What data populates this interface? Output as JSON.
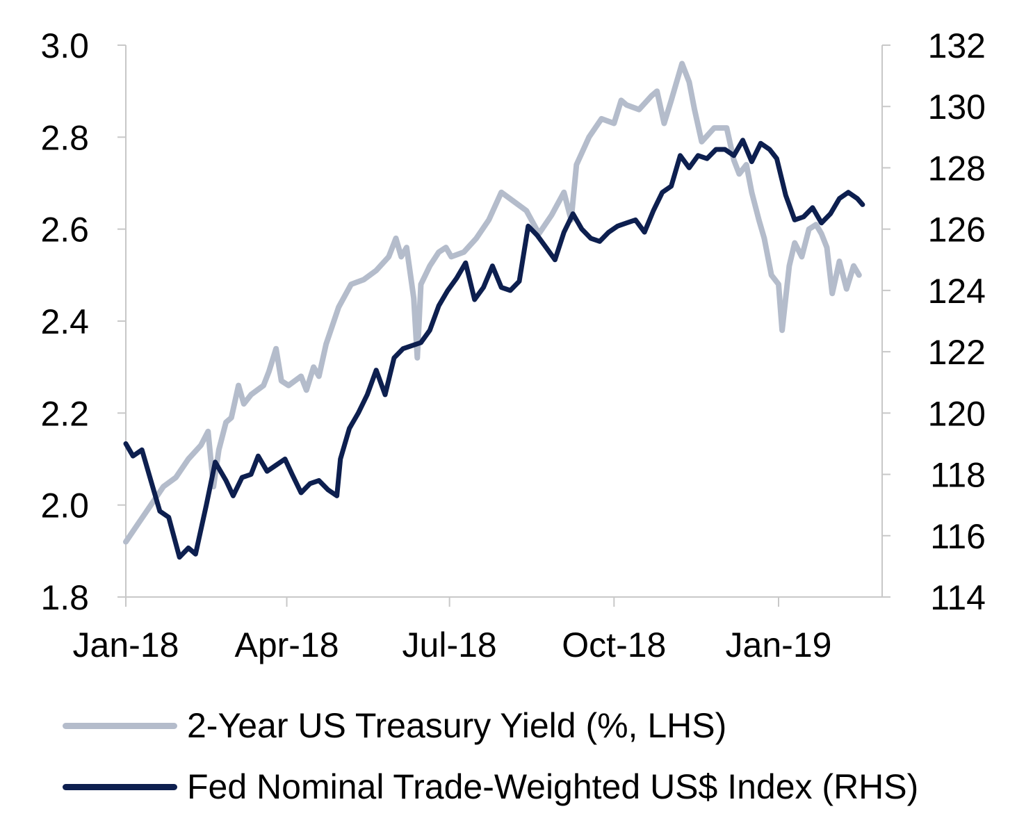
{
  "chart_data": {
    "type": "line",
    "title": "",
    "xlabel": "",
    "ylabel_left": "",
    "ylabel_right": "",
    "x_tick_labels": [
      {
        "date": "2018-01-01",
        "label": "Jan-18"
      },
      {
        "date": "2018-04-01",
        "label": "Apr-18"
      },
      {
        "date": "2018-07-01",
        "label": "Jul-18"
      },
      {
        "date": "2018-10-01",
        "label": "Oct-18"
      },
      {
        "date": "2019-01-01",
        "label": "Jan-19"
      }
    ],
    "x_range": [
      "2018-01-01",
      "2019-02-15"
    ],
    "y_left": {
      "ticks": [
        "1.8",
        "2.0",
        "2.2",
        "2.4",
        "2.6",
        "2.8",
        "3.0"
      ],
      "range": [
        1.8,
        3.0
      ]
    },
    "y_right": {
      "ticks": [
        "114",
        "116",
        "118",
        "120",
        "122",
        "124",
        "126",
        "128",
        "130",
        "132"
      ],
      "range": [
        114,
        132
      ]
    },
    "grid": false,
    "legend_position": "bottom",
    "colors": {
      "yield": "#b4bccb",
      "index": "#0d1f4f",
      "axis": "#c8c8c8"
    },
    "series": [
      {
        "name": "2-Year US Treasury Yield (%, LHS)",
        "axis": "left",
        "points": [
          [
            "2018-01-01",
            1.92
          ],
          [
            "2018-01-08",
            1.96
          ],
          [
            "2018-01-15",
            2.0
          ],
          [
            "2018-01-22",
            2.04
          ],
          [
            "2018-01-29",
            2.06
          ],
          [
            "2018-02-05",
            2.1
          ],
          [
            "2018-02-12",
            2.13
          ],
          [
            "2018-02-16",
            2.16
          ],
          [
            "2018-02-19",
            2.04
          ],
          [
            "2018-02-22",
            2.12
          ],
          [
            "2018-02-26",
            2.18
          ],
          [
            "2018-03-01",
            2.19
          ],
          [
            "2018-03-05",
            2.26
          ],
          [
            "2018-03-08",
            2.22
          ],
          [
            "2018-03-12",
            2.24
          ],
          [
            "2018-03-19",
            2.26
          ],
          [
            "2018-03-22",
            2.29
          ],
          [
            "2018-03-26",
            2.34
          ],
          [
            "2018-03-29",
            2.27
          ],
          [
            "2018-04-02",
            2.26
          ],
          [
            "2018-04-09",
            2.28
          ],
          [
            "2018-04-12",
            2.25
          ],
          [
            "2018-04-16",
            2.3
          ],
          [
            "2018-04-19",
            2.28
          ],
          [
            "2018-04-23",
            2.35
          ],
          [
            "2018-04-30",
            2.43
          ],
          [
            "2018-05-07",
            2.48
          ],
          [
            "2018-05-14",
            2.49
          ],
          [
            "2018-05-21",
            2.51
          ],
          [
            "2018-05-28",
            2.54
          ],
          [
            "2018-06-01",
            2.58
          ],
          [
            "2018-06-04",
            2.54
          ],
          [
            "2018-06-07",
            2.56
          ],
          [
            "2018-06-11",
            2.45
          ],
          [
            "2018-06-13",
            2.32
          ],
          [
            "2018-06-15",
            2.48
          ],
          [
            "2018-06-20",
            2.52
          ],
          [
            "2018-06-25",
            2.55
          ],
          [
            "2018-06-29",
            2.56
          ],
          [
            "2018-07-02",
            2.54
          ],
          [
            "2018-07-09",
            2.55
          ],
          [
            "2018-07-16",
            2.58
          ],
          [
            "2018-07-23",
            2.62
          ],
          [
            "2018-07-30",
            2.68
          ],
          [
            "2018-08-06",
            2.66
          ],
          [
            "2018-08-13",
            2.64
          ],
          [
            "2018-08-20",
            2.59
          ],
          [
            "2018-08-27",
            2.63
          ],
          [
            "2018-09-03",
            2.68
          ],
          [
            "2018-09-07",
            2.62
          ],
          [
            "2018-09-10",
            2.74
          ],
          [
            "2018-09-17",
            2.8
          ],
          [
            "2018-09-24",
            2.84
          ],
          [
            "2018-10-01",
            2.83
          ],
          [
            "2018-10-05",
            2.88
          ],
          [
            "2018-10-08",
            2.87
          ],
          [
            "2018-10-15",
            2.86
          ],
          [
            "2018-10-22",
            2.89
          ],
          [
            "2018-10-25",
            2.9
          ],
          [
            "2018-10-29",
            2.83
          ],
          [
            "2018-11-02",
            2.88
          ],
          [
            "2018-11-08",
            2.96
          ],
          [
            "2018-11-12",
            2.92
          ],
          [
            "2018-11-15",
            2.86
          ],
          [
            "2018-11-19",
            2.79
          ],
          [
            "2018-11-26",
            2.82
          ],
          [
            "2018-12-03",
            2.82
          ],
          [
            "2018-12-07",
            2.75
          ],
          [
            "2018-12-10",
            2.72
          ],
          [
            "2018-12-14",
            2.74
          ],
          [
            "2018-12-17",
            2.68
          ],
          [
            "2018-12-21",
            2.62
          ],
          [
            "2018-12-24",
            2.58
          ],
          [
            "2018-12-28",
            2.5
          ],
          [
            "2019-01-01",
            2.48
          ],
          [
            "2019-01-03",
            2.38
          ],
          [
            "2019-01-07",
            2.52
          ],
          [
            "2019-01-10",
            2.57
          ],
          [
            "2019-01-14",
            2.54
          ],
          [
            "2019-01-18",
            2.6
          ],
          [
            "2019-01-22",
            2.61
          ],
          [
            "2019-01-25",
            2.59
          ],
          [
            "2019-01-28",
            2.56
          ],
          [
            "2019-01-31",
            2.46
          ],
          [
            "2019-02-04",
            2.53
          ],
          [
            "2019-02-08",
            2.47
          ],
          [
            "2019-02-12",
            2.52
          ],
          [
            "2019-02-15",
            2.5
          ]
        ]
      },
      {
        "name": "Fed Nominal Trade-Weighted US$ Index (RHS)",
        "axis": "right",
        "points": [
          [
            "2018-01-01",
            119.0
          ],
          [
            "2018-01-05",
            118.6
          ],
          [
            "2018-01-10",
            118.8
          ],
          [
            "2018-01-15",
            117.8
          ],
          [
            "2018-01-20",
            116.8
          ],
          [
            "2018-01-25",
            116.6
          ],
          [
            "2018-01-31",
            115.3
          ],
          [
            "2018-02-05",
            115.6
          ],
          [
            "2018-02-09",
            115.4
          ],
          [
            "2018-02-15",
            117.0
          ],
          [
            "2018-02-20",
            118.4
          ],
          [
            "2018-02-26",
            117.8
          ],
          [
            "2018-03-02",
            117.3
          ],
          [
            "2018-03-07",
            117.9
          ],
          [
            "2018-03-12",
            118.0
          ],
          [
            "2018-03-16",
            118.6
          ],
          [
            "2018-03-21",
            118.1
          ],
          [
            "2018-03-26",
            118.3
          ],
          [
            "2018-03-31",
            118.5
          ],
          [
            "2018-04-04",
            118.0
          ],
          [
            "2018-04-09",
            117.4
          ],
          [
            "2018-04-14",
            117.7
          ],
          [
            "2018-04-19",
            117.8
          ],
          [
            "2018-04-24",
            117.5
          ],
          [
            "2018-04-29",
            117.3
          ],
          [
            "2018-05-01",
            118.5
          ],
          [
            "2018-05-06",
            119.5
          ],
          [
            "2018-05-11",
            120.0
          ],
          [
            "2018-05-16",
            120.6
          ],
          [
            "2018-05-21",
            121.4
          ],
          [
            "2018-05-26",
            120.6
          ],
          [
            "2018-05-31",
            121.8
          ],
          [
            "2018-06-05",
            122.1
          ],
          [
            "2018-06-10",
            122.2
          ],
          [
            "2018-06-15",
            122.3
          ],
          [
            "2018-06-20",
            122.7
          ],
          [
            "2018-06-25",
            123.5
          ],
          [
            "2018-06-30",
            124.0
          ],
          [
            "2018-07-05",
            124.4
          ],
          [
            "2018-07-10",
            124.9
          ],
          [
            "2018-07-15",
            123.7
          ],
          [
            "2018-07-20",
            124.1
          ],
          [
            "2018-07-25",
            124.8
          ],
          [
            "2018-07-30",
            124.1
          ],
          [
            "2018-08-04",
            124.0
          ],
          [
            "2018-08-09",
            124.3
          ],
          [
            "2018-08-14",
            126.1
          ],
          [
            "2018-08-19",
            125.8
          ],
          [
            "2018-08-24",
            125.4
          ],
          [
            "2018-08-29",
            125.0
          ],
          [
            "2018-09-03",
            125.9
          ],
          [
            "2018-09-08",
            126.5
          ],
          [
            "2018-09-13",
            126.0
          ],
          [
            "2018-09-18",
            125.7
          ],
          [
            "2018-09-23",
            125.6
          ],
          [
            "2018-09-28",
            125.9
          ],
          [
            "2018-10-03",
            126.1
          ],
          [
            "2018-10-08",
            126.2
          ],
          [
            "2018-10-13",
            126.3
          ],
          [
            "2018-10-18",
            125.9
          ],
          [
            "2018-10-23",
            126.6
          ],
          [
            "2018-10-28",
            127.2
          ],
          [
            "2018-11-02",
            127.4
          ],
          [
            "2018-11-07",
            128.4
          ],
          [
            "2018-11-12",
            128.0
          ],
          [
            "2018-11-17",
            128.4
          ],
          [
            "2018-11-22",
            128.3
          ],
          [
            "2018-11-27",
            128.6
          ],
          [
            "2018-12-02",
            128.6
          ],
          [
            "2018-12-07",
            128.4
          ],
          [
            "2018-12-12",
            128.9
          ],
          [
            "2018-12-17",
            128.2
          ],
          [
            "2018-12-22",
            128.8
          ],
          [
            "2018-12-27",
            128.6
          ],
          [
            "2018-12-31",
            128.3
          ],
          [
            "2019-01-05",
            127.1
          ],
          [
            "2019-01-10",
            126.3
          ],
          [
            "2019-01-15",
            126.4
          ],
          [
            "2019-01-20",
            126.7
          ],
          [
            "2019-01-25",
            126.2
          ],
          [
            "2019-01-30",
            126.5
          ],
          [
            "2019-02-04",
            127.0
          ],
          [
            "2019-02-09",
            127.2
          ],
          [
            "2019-02-14",
            127.0
          ],
          [
            "2019-02-17",
            126.8
          ]
        ]
      }
    ]
  }
}
